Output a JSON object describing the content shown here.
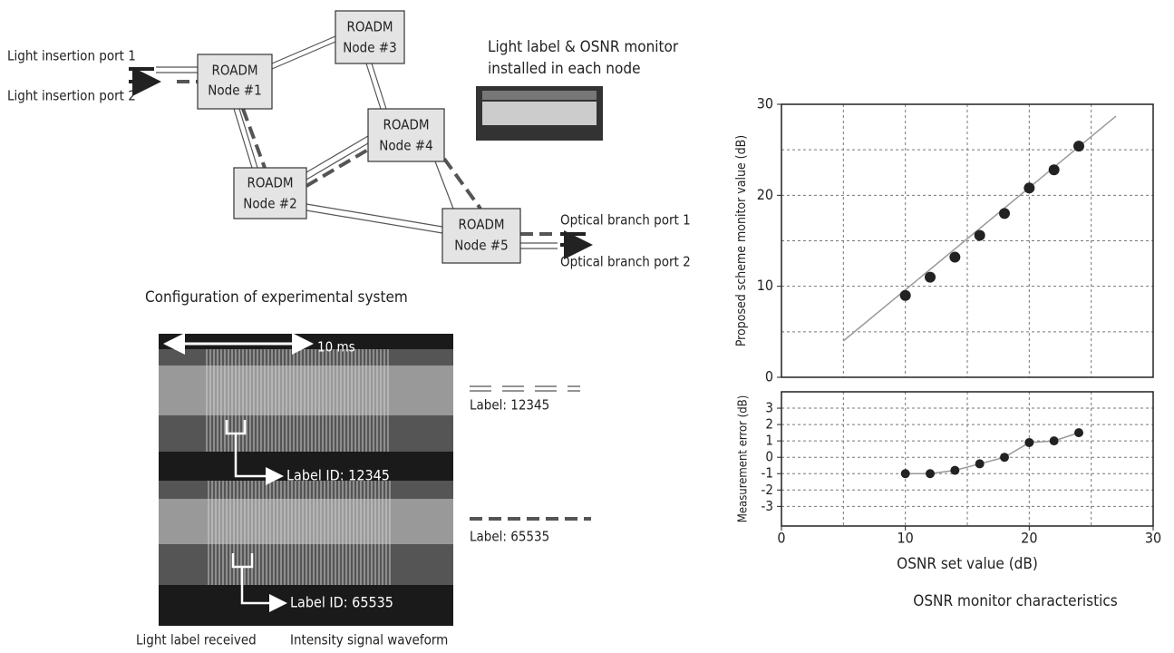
{
  "diagram": {
    "nodes": [
      {
        "label": [
          "ROADM",
          "Node #1"
        ]
      },
      {
        "label": [
          "ROADM",
          "Node #2"
        ]
      },
      {
        "label": [
          "ROADM",
          "Node #3"
        ]
      },
      {
        "label": [
          "ROADM",
          "Node #4"
        ]
      },
      {
        "label": [
          "ROADM",
          "Node #5"
        ]
      }
    ],
    "insertion_ports": [
      "Light insertion port 1",
      "Light insertion port 2"
    ],
    "branch_ports": [
      "Optical branch port 1",
      "Optical branch port 2"
    ],
    "monitor_label": [
      "Light label & OSNR monitor",
      "installed in each node"
    ],
    "caption": "Configuration of experimental system"
  },
  "waveform": {
    "scale": "10 ms",
    "label_ids": [
      "Label ID: 12345",
      "Label ID: 65535"
    ],
    "legend": [
      "Label: 12345",
      "Label: 65535"
    ],
    "captions": [
      "Light label received",
      "Intensity signal waveform"
    ]
  },
  "chart_data": [
    {
      "type": "scatter",
      "y_label": "Proposed scheme monitor value (dB)",
      "x": [
        10,
        12,
        14,
        16,
        18,
        20,
        22,
        24
      ],
      "values": [
        9,
        11,
        13.2,
        15.6,
        18,
        20.8,
        22.8,
        25.4
      ],
      "fit_x": [
        5,
        27
      ],
      "fit_values": [
        4,
        28.7
      ],
      "xlim": [
        0,
        30
      ],
      "ylim": [
        0,
        30
      ],
      "yticks": [
        0,
        10,
        20,
        30
      ],
      "xgrid": [
        5,
        10,
        15,
        20,
        25
      ],
      "ygrid": [
        5,
        10,
        15,
        20,
        25
      ],
      "color": "#222222"
    },
    {
      "type": "scatter",
      "x_label": "OSNR set value (dB)",
      "y_label": "Measurement error (dB)",
      "x": [
        10,
        12,
        14,
        16,
        18,
        20,
        22,
        24
      ],
      "values": [
        -1,
        -1,
        -0.8,
        -0.4,
        0,
        0.9,
        1,
        1.5
      ],
      "xlim": [
        0,
        30
      ],
      "ylim": [
        -4.2,
        4
      ],
      "xticks": [
        0,
        10,
        20,
        30
      ],
      "yticks": [
        -3,
        -2,
        -1,
        0,
        1,
        2,
        3
      ],
      "xgrid": [
        5,
        10,
        15,
        20,
        25
      ],
      "color": "#222222"
    }
  ],
  "caption": "OSNR monitor characteristics"
}
